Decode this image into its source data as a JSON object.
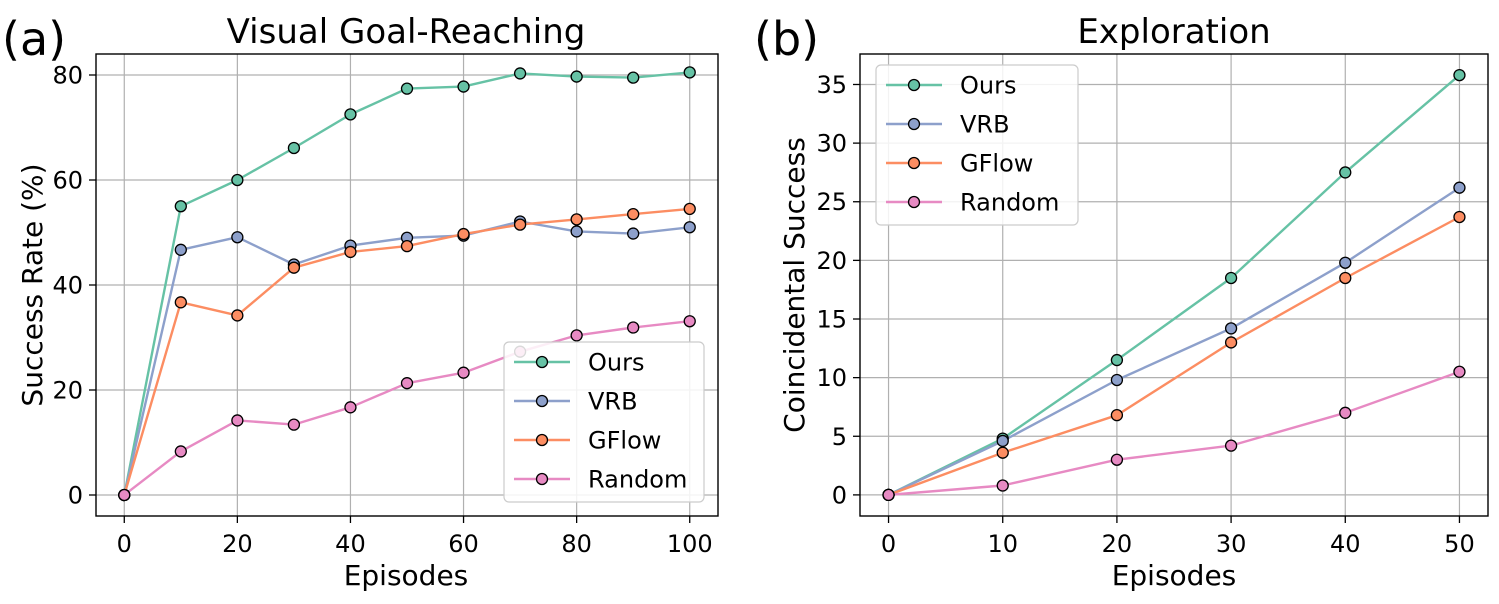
{
  "chart_data": [
    {
      "type": "line",
      "panel_label": "(a)",
      "title": "Visual Goal-Reaching",
      "xlabel": "Episodes",
      "ylabel": "Success Rate (%)",
      "xlim": [
        -5,
        105
      ],
      "ylim": [
        -4,
        84
      ],
      "xticks": [
        0,
        20,
        40,
        60,
        80,
        100
      ],
      "yticks": [
        0,
        20,
        40,
        60,
        80
      ],
      "grid": true,
      "legend_position": "lower-right",
      "x": [
        0,
        10,
        20,
        30,
        40,
        50,
        60,
        70,
        80,
        90,
        100
      ],
      "series": [
        {
          "name": "Ours",
          "color": "#66c2a5",
          "values": [
            0,
            55.0,
            60.0,
            66.1,
            72.5,
            77.4,
            77.8,
            80.3,
            79.7,
            79.5,
            80.5
          ]
        },
        {
          "name": "VRB",
          "color": "#8da0cb",
          "values": [
            0,
            46.7,
            49.1,
            43.9,
            47.5,
            49.0,
            49.4,
            52.1,
            50.2,
            49.8,
            51.0
          ]
        },
        {
          "name": "GFlow",
          "color": "#fc8d62",
          "values": [
            0,
            36.7,
            34.2,
            43.3,
            46.3,
            47.4,
            49.7,
            51.5,
            52.5,
            53.5,
            54.5
          ]
        },
        {
          "name": "Random",
          "color": "#e78ac3",
          "values": [
            0,
            8.3,
            14.2,
            13.4,
            16.7,
            21.3,
            23.3,
            27.3,
            30.4,
            31.9,
            33.1
          ]
        }
      ]
    },
    {
      "type": "line",
      "panel_label": "(b)",
      "title": "Exploration",
      "xlabel": "Episodes",
      "ylabel": "Coincidental Success",
      "xlim": [
        -2.5,
        52.5
      ],
      "ylim": [
        -1.8,
        37.6
      ],
      "xticks": [
        0,
        10,
        20,
        30,
        40,
        50
      ],
      "yticks": [
        0,
        5,
        10,
        15,
        20,
        25,
        30,
        35
      ],
      "grid": true,
      "legend_position": "upper-left",
      "x": [
        0,
        10,
        20,
        30,
        40,
        50
      ],
      "series": [
        {
          "name": "Ours",
          "color": "#66c2a5",
          "values": [
            0,
            4.8,
            11.5,
            18.5,
            27.5,
            35.8
          ]
        },
        {
          "name": "VRB",
          "color": "#8da0cb",
          "values": [
            0,
            4.6,
            9.8,
            14.2,
            19.8,
            26.2
          ]
        },
        {
          "name": "GFlow",
          "color": "#fc8d62",
          "values": [
            0,
            3.6,
            6.8,
            13.0,
            18.5,
            23.7
          ]
        },
        {
          "name": "Random",
          "color": "#e78ac3",
          "values": [
            0,
            0.8,
            3.0,
            4.2,
            7.0,
            10.5
          ]
        }
      ]
    }
  ]
}
